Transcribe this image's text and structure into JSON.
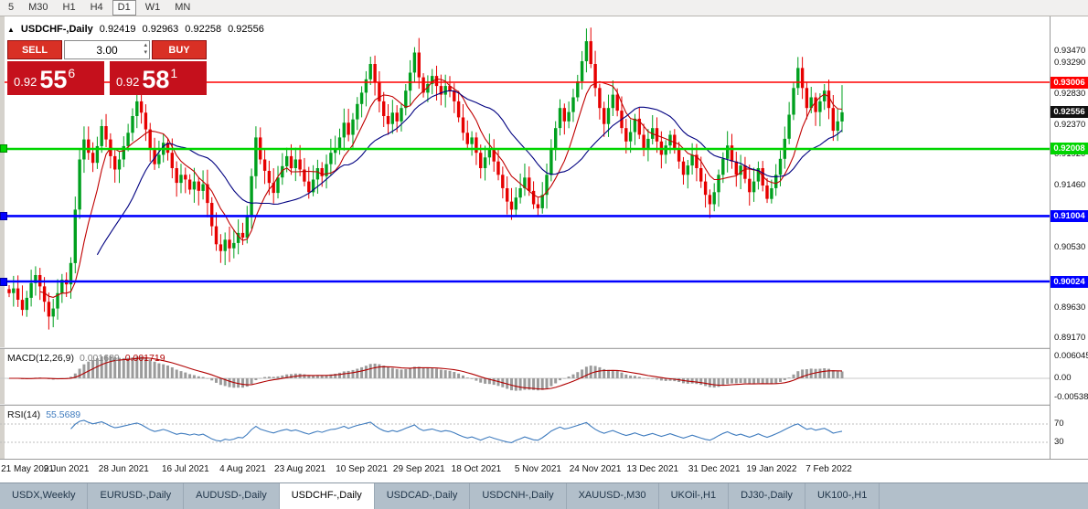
{
  "toolbar": {
    "timeframes": [
      {
        "label": "5",
        "active": false
      },
      {
        "label": "M30",
        "active": false
      },
      {
        "label": "H1",
        "active": false
      },
      {
        "label": "H4",
        "active": false
      },
      {
        "label": "D1",
        "active": true
      },
      {
        "label": "W1",
        "active": false
      },
      {
        "label": "MN",
        "active": false
      }
    ]
  },
  "chart_title": {
    "toggle_icon": "▲",
    "symbol": "USDCHF-,Daily",
    "open": "0.92419",
    "high": "0.92963",
    "low": "0.92258",
    "close": "0.92556"
  },
  "trade_panel": {
    "sell_label": "SELL",
    "buy_label": "BUY",
    "volume": "3.00",
    "spinner_up_icon": "▴",
    "spinner_down_icon": "▾",
    "bid": {
      "full": "0.92556",
      "small": "0.92",
      "big": "55",
      "sup": "6"
    },
    "ask": {
      "full": "0.92581",
      "small": "0.92",
      "big": "58",
      "sup": "1"
    },
    "colors": {
      "button": "#d93025",
      "price_box": "#c5101c"
    }
  },
  "chart_data": {
    "type": "candlestick",
    "symbol": "USDCHF",
    "timeframe": "Daily",
    "price_range": {
      "top": 0.93854,
      "bottom": 0.89067
    },
    "last_ohlc": {
      "open": 0.92419,
      "high": 0.92963,
      "low": 0.92258,
      "close": 0.92556
    },
    "closes": [
      0.8985,
      0.8992,
      0.8975,
      0.896,
      0.8978,
      0.9,
      0.9012,
      0.8995,
      0.8972,
      0.895,
      0.8962,
      0.8985,
      0.9005,
      0.8998,
      0.903,
      0.911,
      0.9185,
      0.9215,
      0.9195,
      0.918,
      0.9205,
      0.9235,
      0.9215,
      0.919,
      0.917,
      0.9185,
      0.9205,
      0.9225,
      0.925,
      0.9272,
      0.9255,
      0.923,
      0.92,
      0.9178,
      0.9192,
      0.921,
      0.9195,
      0.9172,
      0.915,
      0.9162,
      0.9155,
      0.914,
      0.9152,
      0.9138,
      0.9148,
      0.912,
      0.9085,
      0.9058,
      0.9048,
      0.9065,
      0.9052,
      0.906,
      0.9075,
      0.9068,
      0.91,
      0.916,
      0.9218,
      0.9185,
      0.9168,
      0.915,
      0.9135,
      0.9158,
      0.9175,
      0.919,
      0.9172,
      0.9185,
      0.917,
      0.9152,
      0.9136,
      0.9155,
      0.9172,
      0.916,
      0.9178,
      0.9195,
      0.92,
      0.9218,
      0.924,
      0.9222,
      0.9245,
      0.9268,
      0.9285,
      0.9305,
      0.9328,
      0.93,
      0.9272,
      0.925,
      0.9238,
      0.9255,
      0.9242,
      0.9262,
      0.9288,
      0.9315,
      0.9345,
      0.9308,
      0.9285,
      0.9298,
      0.931,
      0.9295,
      0.9282,
      0.9295,
      0.9288,
      0.9272,
      0.9248,
      0.9225,
      0.9208,
      0.9218,
      0.9195,
      0.9172,
      0.9188,
      0.9202,
      0.9182,
      0.9162,
      0.9142,
      0.9122,
      0.911,
      0.9128,
      0.9142,
      0.9158,
      0.9138,
      0.9118,
      0.9112,
      0.9132,
      0.9162,
      0.9202,
      0.9232,
      0.9262,
      0.9242,
      0.9256,
      0.9278,
      0.9302,
      0.9332,
      0.9362,
      0.9328,
      0.9292,
      0.9262,
      0.9238,
      0.9262,
      0.9282,
      0.9258,
      0.9232,
      0.9212,
      0.9226,
      0.9246,
      0.9222,
      0.9202,
      0.9216,
      0.9232,
      0.9212,
      0.9192,
      0.9206,
      0.9222,
      0.9202,
      0.9182,
      0.9162,
      0.9176,
      0.9192,
      0.9172,
      0.9152,
      0.9132,
      0.9118,
      0.9136,
      0.9162,
      0.9186,
      0.9206,
      0.9182,
      0.9162,
      0.9176,
      0.9156,
      0.9136,
      0.9152,
      0.9172,
      0.9146,
      0.9126,
      0.9142,
      0.9162,
      0.9186,
      0.9216,
      0.9252,
      0.9292,
      0.9322,
      0.9292,
      0.9262,
      0.9278,
      0.9256,
      0.9272,
      0.9288,
      0.9262,
      0.9228,
      0.9242,
      0.92556
    ],
    "candle_colors": {
      "up": "#00a01e",
      "down": "#e60000"
    },
    "ma_lines": [
      {
        "name": "fast",
        "period": 8,
        "color": "#c00000"
      },
      {
        "name": "slow",
        "period": 21,
        "color": "#000080"
      }
    ],
    "levels": [
      {
        "price": 0.93006,
        "label": "0.93006",
        "color": "#ff0000",
        "width": 1.4,
        "marker": false
      },
      {
        "price": 0.92008,
        "label": "0.92008",
        "color": "#00d500",
        "width": 2.6,
        "marker": true
      },
      {
        "price": 0.91004,
        "label": "0.91004",
        "color": "#0000ff",
        "width": 2.6,
        "marker": true
      },
      {
        "price": 0.90024,
        "label": "0.90024",
        "color": "#0000ff",
        "width": 2.6,
        "marker": true
      }
    ],
    "bid_badge": {
      "price": 0.92556,
      "label": "0.92556",
      "bg": "#111111"
    },
    "y_axis_labels": [
      "0.93470",
      "0.93290",
      "0.92830",
      "0.92370",
      "0.91920",
      "0.91460",
      "0.90530",
      "0.89630",
      "0.89170"
    ],
    "x_labels": [
      {
        "text": "21 May 2021",
        "i": 0
      },
      {
        "text": "9 Jun 2021",
        "i": 13
      },
      {
        "text": "28 Jun 2021",
        "i": 26
      },
      {
        "text": "16 Jul 2021",
        "i": 40
      },
      {
        "text": "4 Aug 2021",
        "i": 53
      },
      {
        "text": "23 Aug 2021",
        "i": 66
      },
      {
        "text": "10 Sep 2021",
        "i": 80
      },
      {
        "text": "29 Sep 2021",
        "i": 93
      },
      {
        "text": "18 Oct 2021",
        "i": 106
      },
      {
        "text": "5 Nov 2021",
        "i": 120
      },
      {
        "text": "24 Nov 2021",
        "i": 133
      },
      {
        "text": "13 Dec 2021",
        "i": 146
      },
      {
        "text": "31 Dec 2021",
        "i": 160
      },
      {
        "text": "19 Jan 2022",
        "i": 173
      },
      {
        "text": "7 Feb 2022",
        "i": 186
      }
    ],
    "indicators": {
      "macd": {
        "label": "MACD(12,26,9)",
        "display_values": [
          "0.001689",
          "0.001719"
        ],
        "axis_labels": [
          {
            "text": "0.006045",
            "value": 0.006045
          },
          {
            "text": "0.00",
            "value": 0
          },
          {
            "text": "-0.005380",
            "value": -0.00538
          }
        ],
        "hist_color": "#9b9b9b",
        "signal_color": "#b00000"
      },
      "rsi": {
        "label": "RSI(14)",
        "display_value": "55.5689",
        "color": "#3e7bbe",
        "levels": [
          70,
          30
        ],
        "axis_labels": [
          {
            "text": "70",
            "value": 70
          },
          {
            "text": "30",
            "value": 30
          }
        ]
      }
    }
  },
  "bottom_tabs": {
    "items": [
      {
        "label": "USDX,Weekly",
        "active": false
      },
      {
        "label": "EURUSD-,Daily",
        "active": false
      },
      {
        "label": "AUDUSD-,Daily",
        "active": false
      },
      {
        "label": "USDCHF-,Daily",
        "active": true
      },
      {
        "label": "USDCAD-,Daily",
        "active": false
      },
      {
        "label": "USDCNH-,Daily",
        "active": false
      },
      {
        "label": "XAUUSD-,M30",
        "active": false
      },
      {
        "label": "UKOil-,H1",
        "active": false
      },
      {
        "label": "DJ30-,Daily",
        "active": false
      },
      {
        "label": "UK100-,H1",
        "active": false
      }
    ]
  }
}
